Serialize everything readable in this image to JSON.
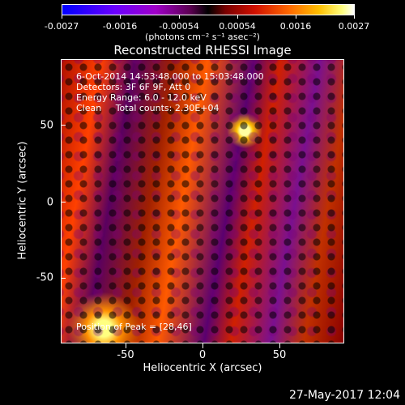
{
  "colorbar": {
    "ticks": [
      "-0.0027",
      "-0.0016",
      "-0.00054",
      "0.00054",
      "0.0016",
      "0.0027"
    ],
    "unit": "(photons cm⁻² s⁻¹ asec⁻²)"
  },
  "title": "Reconstructed RHESSI Image",
  "info": {
    "line1": "6-Oct-2014 14:53:48.000 to 15:03:48.000",
    "line2": "Detectors: 3F 6F 9F, Att 0",
    "line3": "Energy Range: 6.0 - 12.0 keV",
    "line4": "Clean     Total counts: 2.30E+04"
  },
  "peak": "Position of Peak = [28,46]",
  "axes": {
    "xlabel": "Heliocentric X (arcsec)",
    "ylabel": "Heliocentric Y (arcsec)",
    "xticks": [
      "-50",
      "0",
      "50"
    ],
    "yticks": [
      "50",
      "0",
      "-50"
    ]
  },
  "footer_date": "27-May-2017 12:04"
}
